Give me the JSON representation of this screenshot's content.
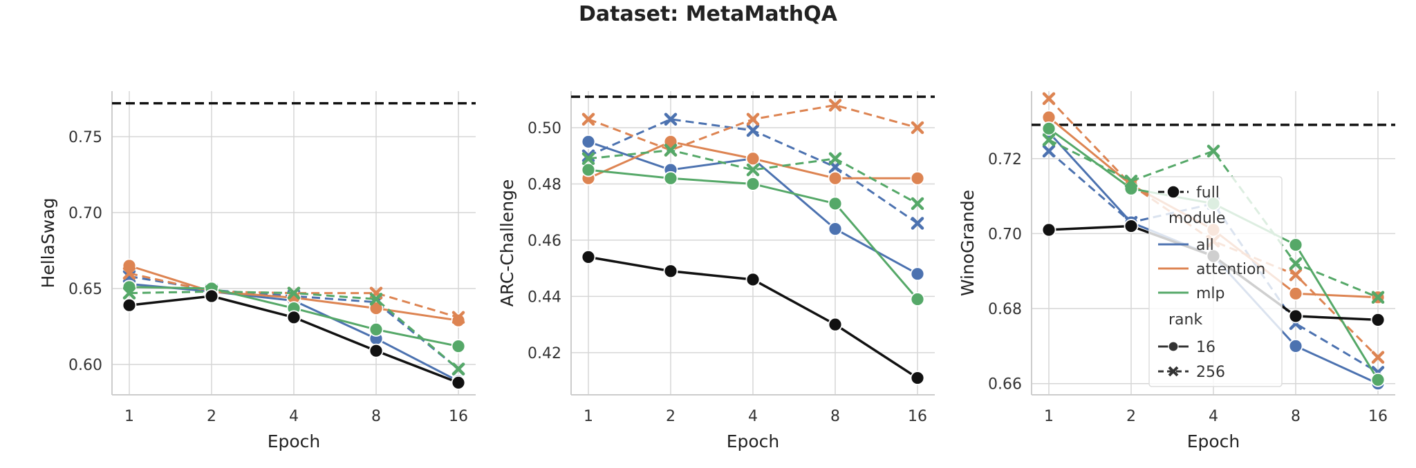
{
  "figure": {
    "title": "Dataset: MetaMathQA"
  },
  "chart_data": [
    {
      "type": "line",
      "xlabel": "Epoch",
      "ylabel": "HellaSwag",
      "x_ticks": [
        "1",
        "2",
        "4",
        "8",
        "16"
      ],
      "ylim": [
        0.58,
        0.78
      ],
      "y_ticks": [
        0.6,
        0.65,
        0.7,
        0.75
      ],
      "y_tick_labels": [
        "0.60",
        "0.65",
        "0.70",
        "0.75"
      ],
      "full_baseline": 0.772,
      "series": [
        {
          "name": "full",
          "module": "full",
          "rank": "16",
          "values": [
            0.639,
            0.645,
            0.631,
            0.609,
            0.588
          ]
        },
        {
          "module": "all",
          "rank": "16",
          "values": [
            0.653,
            0.648,
            0.642,
            0.617,
            0.589
          ]
        },
        {
          "module": "all",
          "rank": "256",
          "values": [
            0.658,
            0.649,
            0.645,
            0.641,
            0.597
          ]
        },
        {
          "module": "attention",
          "rank": "16",
          "values": [
            0.665,
            0.648,
            0.644,
            0.637,
            0.629
          ]
        },
        {
          "module": "attention",
          "rank": "256",
          "values": [
            0.66,
            0.648,
            0.647,
            0.647,
            0.631
          ]
        },
        {
          "module": "mlp",
          "rank": "16",
          "values": [
            0.651,
            0.65,
            0.637,
            0.623,
            0.612
          ]
        },
        {
          "module": "mlp",
          "rank": "256",
          "values": [
            0.647,
            0.648,
            0.647,
            0.643,
            0.597
          ]
        }
      ]
    },
    {
      "type": "line",
      "xlabel": "Epoch",
      "ylabel": "ARC-Challenge",
      "x_ticks": [
        "1",
        "2",
        "4",
        "8",
        "16"
      ],
      "ylim": [
        0.405,
        0.513
      ],
      "y_ticks": [
        0.42,
        0.44,
        0.46,
        0.48,
        0.5
      ],
      "y_tick_labels": [
        "0.42",
        "0.44",
        "0.46",
        "0.48",
        "0.50"
      ],
      "full_baseline": 0.511,
      "series": [
        {
          "name": "full",
          "module": "full",
          "rank": "16",
          "values": [
            0.454,
            0.449,
            0.446,
            0.43,
            0.411
          ]
        },
        {
          "module": "all",
          "rank": "16",
          "values": [
            0.495,
            0.485,
            0.489,
            0.464,
            0.448
          ]
        },
        {
          "module": "all",
          "rank": "256",
          "values": [
            0.49,
            0.503,
            0.499,
            0.486,
            0.466
          ]
        },
        {
          "module": "attention",
          "rank": "16",
          "values": [
            0.482,
            0.495,
            0.489,
            0.482,
            0.482
          ]
        },
        {
          "module": "attention",
          "rank": "256",
          "values": [
            0.503,
            0.492,
            0.503,
            0.508,
            0.5
          ]
        },
        {
          "module": "mlp",
          "rank": "16",
          "values": [
            0.485,
            0.482,
            0.48,
            0.473,
            0.439
          ]
        },
        {
          "module": "mlp",
          "rank": "256",
          "values": [
            0.489,
            0.492,
            0.485,
            0.489,
            0.473
          ]
        }
      ]
    },
    {
      "type": "line",
      "xlabel": "Epoch",
      "ylabel": "WinoGrande",
      "x_ticks": [
        "1",
        "2",
        "4",
        "8",
        "16"
      ],
      "ylim": [
        0.657,
        0.738
      ],
      "y_ticks": [
        0.66,
        0.68,
        0.7,
        0.72
      ],
      "y_tick_labels": [
        "0.66",
        "0.68",
        "0.70",
        "0.72"
      ],
      "full_baseline": 0.729,
      "series": [
        {
          "name": "full",
          "module": "full",
          "rank": "16",
          "values": [
            0.701,
            0.702,
            0.694,
            0.678,
            0.677
          ]
        },
        {
          "module": "all",
          "rank": "16",
          "values": [
            0.727,
            0.703,
            0.694,
            0.67,
            0.66
          ]
        },
        {
          "module": "all",
          "rank": "256",
          "values": [
            0.722,
            0.703,
            0.708,
            0.676,
            0.663
          ]
        },
        {
          "module": "attention",
          "rank": "16",
          "values": [
            0.731,
            0.713,
            0.701,
            0.684,
            0.683
          ]
        },
        {
          "module": "attention",
          "rank": "256",
          "values": [
            0.736,
            0.713,
            0.698,
            0.689,
            0.667
          ]
        },
        {
          "module": "mlp",
          "rank": "16",
          "values": [
            0.728,
            0.712,
            0.708,
            0.697,
            0.661
          ]
        },
        {
          "module": "mlp",
          "rank": "256",
          "values": [
            0.725,
            0.714,
            0.722,
            0.692,
            0.683
          ]
        }
      ]
    }
  ],
  "legend": {
    "placement": "inside third panel, center-left",
    "entries": {
      "full": "full",
      "module_title": "module",
      "all": "all",
      "attention": "attention",
      "mlp": "mlp",
      "rank_title": "rank",
      "rank16": "16",
      "rank256": "256"
    }
  },
  "colors": {
    "full": "#111111",
    "all": "#4C72B0",
    "attention": "#DD8452",
    "mlp": "#55A868",
    "grid": "#d6d6d6",
    "spine": "#cccccc"
  },
  "style": {
    "rank16": "solid with circle markers",
    "rank256": "dashed with x markers",
    "baseline": "black dashed horizontal line"
  }
}
